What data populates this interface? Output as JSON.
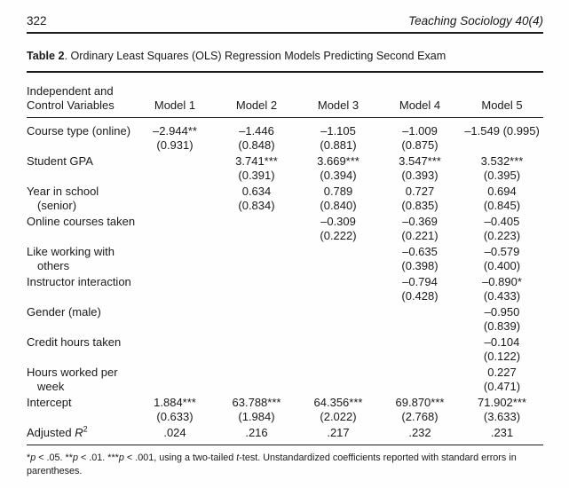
{
  "page": {
    "number": "322",
    "journal": "Teaching Sociology 40(4)"
  },
  "table": {
    "title_bold": "Table 2",
    "title_rest": ". Ordinary Least Squares (OLS) Regression Models Predicting Second Exam",
    "stub_header_line1": "Independent and",
    "stub_header_line2": "Control Variables",
    "models": [
      "Model 1",
      "Model 2",
      "Model 3",
      "Model 4",
      "Model 5"
    ],
    "rows": [
      {
        "label1": "Course type (online)",
        "label2": "",
        "m1a": "–2.944**",
        "m1b": "(0.931)",
        "m2a": "–1.446",
        "m2b": "(0.848)",
        "m3a": "–1.105",
        "m3b": "(0.881)",
        "m4a": "–1.009",
        "m4b": "(0.875)",
        "m5a": "–1.549 (0.995)",
        "m5b": ""
      },
      {
        "label1": "Student GPA",
        "label2": "",
        "m1a": "",
        "m1b": "",
        "m2a": "3.741***",
        "m2b": "(0.391)",
        "m3a": "3.669***",
        "m3b": "(0.394)",
        "m4a": "3.547***",
        "m4b": "(0.393)",
        "m5a": "3.532***",
        "m5b": "(0.395)"
      },
      {
        "label1": "Year in school",
        "label2": "(senior)",
        "m1a": "",
        "m1b": "",
        "m2a": "0.634",
        "m2b": "(0.834)",
        "m3a": "0.789",
        "m3b": "(0.840)",
        "m4a": "0.727",
        "m4b": "(0.835)",
        "m5a": "0.694",
        "m5b": "(0.845)"
      },
      {
        "label1": "Online courses taken",
        "label2": "",
        "m1a": "",
        "m1b": "",
        "m2a": "",
        "m2b": "",
        "m3a": "–0.309",
        "m3b": "(0.222)",
        "m4a": "–0.369",
        "m4b": "(0.221)",
        "m5a": "–0.405",
        "m5b": "(0.223)"
      },
      {
        "label1": "Like working with",
        "label2": "others",
        "m1a": "",
        "m1b": "",
        "m2a": "",
        "m2b": "",
        "m3a": "",
        "m3b": "",
        "m4a": "–0.635",
        "m4b": "(0.398)",
        "m5a": "–0.579",
        "m5b": "(0.400)"
      },
      {
        "label1": "Instructor interaction",
        "label2": "",
        "m1a": "",
        "m1b": "",
        "m2a": "",
        "m2b": "",
        "m3a": "",
        "m3b": "",
        "m4a": "–0.794",
        "m4b": "(0.428)",
        "m5a": "–0.890*",
        "m5b": "(0.433)"
      },
      {
        "label1": "Gender (male)",
        "label2": "",
        "m1a": "",
        "m1b": "",
        "m2a": "",
        "m2b": "",
        "m3a": "",
        "m3b": "",
        "m4a": "",
        "m4b": "",
        "m5a": "–0.950",
        "m5b": "(0.839)"
      },
      {
        "label1": "Credit hours taken",
        "label2": "",
        "m1a": "",
        "m1b": "",
        "m2a": "",
        "m2b": "",
        "m3a": "",
        "m3b": "",
        "m4a": "",
        "m4b": "",
        "m5a": "–0.104",
        "m5b": "(0.122)"
      },
      {
        "label1": "Hours worked per",
        "label2": "week",
        "m1a": "",
        "m1b": "",
        "m2a": "",
        "m2b": "",
        "m3a": "",
        "m3b": "",
        "m4a": "",
        "m4b": "",
        "m5a": "0.227",
        "m5b": "(0.471)"
      },
      {
        "label1": "Intercept",
        "label2": "",
        "m1a": "1.884***",
        "m1b": "(0.633)",
        "m2a": "63.788***",
        "m2b": "(1.984)",
        "m3a": "64.356***",
        "m3b": "(2.022)",
        "m4a": "69.870***",
        "m4b": "(2.768)",
        "m5a": "71.902***",
        "m5b": "(3.633)"
      }
    ],
    "adjusted": {
      "prefix": "Adjusted ",
      "r": "R",
      "sup": "2",
      "values": [
        ".024",
        ".216",
        ".217",
        ".232",
        ".231"
      ]
    }
  },
  "footnote": {
    "seg1": "*",
    "seg2": "p",
    "seg3": " < .05. **",
    "seg4": "p",
    "seg5": " < .01. ***",
    "seg6": "p",
    "seg7": " < .001, using a two-tailed ",
    "seg8": "t",
    "seg9": "-test. Unstandardized coefficients reported with standard errors in parentheses."
  }
}
